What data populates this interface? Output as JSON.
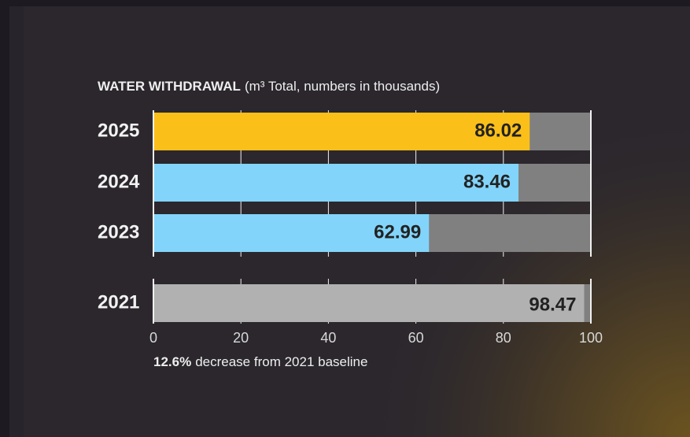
{
  "chart_data": {
    "type": "bar",
    "orientation": "horizontal",
    "title": "WATER WITHDRAWAL",
    "subtitle": "(m³ Total, numbers in thousands)",
    "categories": [
      "2025",
      "2024",
      "2023",
      "2021"
    ],
    "values": [
      86.02,
      83.46,
      62.99,
      98.47
    ],
    "colors": [
      "#fbbf1a",
      "#82d4fa",
      "#82d4fa",
      "#b1b1b1"
    ],
    "track_color": "#808080",
    "xlim": [
      0,
      100
    ],
    "xticks": [
      0,
      20,
      40,
      60,
      80,
      100
    ],
    "grid": true,
    "annotation": {
      "emphasis": "12.6%",
      "text": "decrease from 2021 baseline"
    }
  }
}
